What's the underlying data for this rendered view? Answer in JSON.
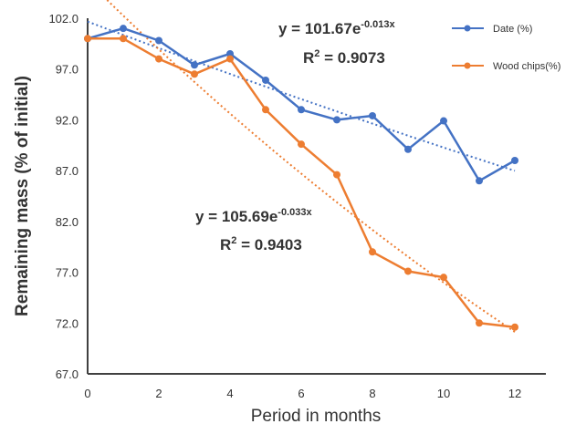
{
  "chart_data": {
    "type": "line",
    "title": "",
    "xlabel": "Period in months",
    "ylabel": "Remaining  mass  (% of  initial)",
    "xlim": [
      0,
      13
    ],
    "ylim": [
      67.0,
      102.0
    ],
    "x_ticks": [
      "0",
      "2",
      "4",
      "6",
      "8",
      "10",
      "12"
    ],
    "x_tick_values": [
      0,
      2,
      4,
      6,
      8,
      10,
      12
    ],
    "y_ticks": [
      "102.0",
      "97.0",
      "92.0",
      "87.0",
      "82.0",
      "77.0",
      "72.0",
      "67.0"
    ],
    "y_tick_values": [
      102,
      97,
      92,
      87,
      82,
      77,
      72,
      67
    ],
    "grid": false,
    "legend_position": "top-right",
    "series": [
      {
        "name": "Date (%)",
        "color": "#4472c4",
        "x": [
          0,
          1,
          2,
          3,
          4,
          5,
          6,
          7,
          8,
          9,
          10,
          11,
          12
        ],
        "values": [
          100.0,
          101.0,
          99.8,
          97.4,
          98.5,
          95.9,
          93.0,
          92.0,
          92.4,
          89.1,
          91.9,
          86.0,
          88.0
        ],
        "trendline": {
          "type": "exponential",
          "a": 101.67,
          "b": -0.013,
          "color": "#4472c4",
          "equation_main": "y = 101.67e",
          "equation_exp": "-0.013x",
          "r2_label": "R",
          "r2_sup": "2",
          "r2_value": " = 0.9073"
        }
      },
      {
        "name": "Wood chips(%)",
        "color": "#ed7d31",
        "x": [
          0,
          1,
          2,
          3,
          4,
          5,
          6,
          7,
          8,
          9,
          10,
          11,
          12
        ],
        "values": [
          100.0,
          100.0,
          98.0,
          96.5,
          98.0,
          93.0,
          89.6,
          86.6,
          79.0,
          77.1,
          76.5,
          72.0,
          71.6
        ],
        "trendline": {
          "type": "exponential",
          "a": 105.69,
          "b": -0.033,
          "color": "#ed7d31",
          "equation_main": "y = 105.69e",
          "equation_exp": "-0.033x",
          "r2_label": "R",
          "r2_sup": "2",
          "r2_value": " = 0.9403"
        }
      }
    ]
  }
}
